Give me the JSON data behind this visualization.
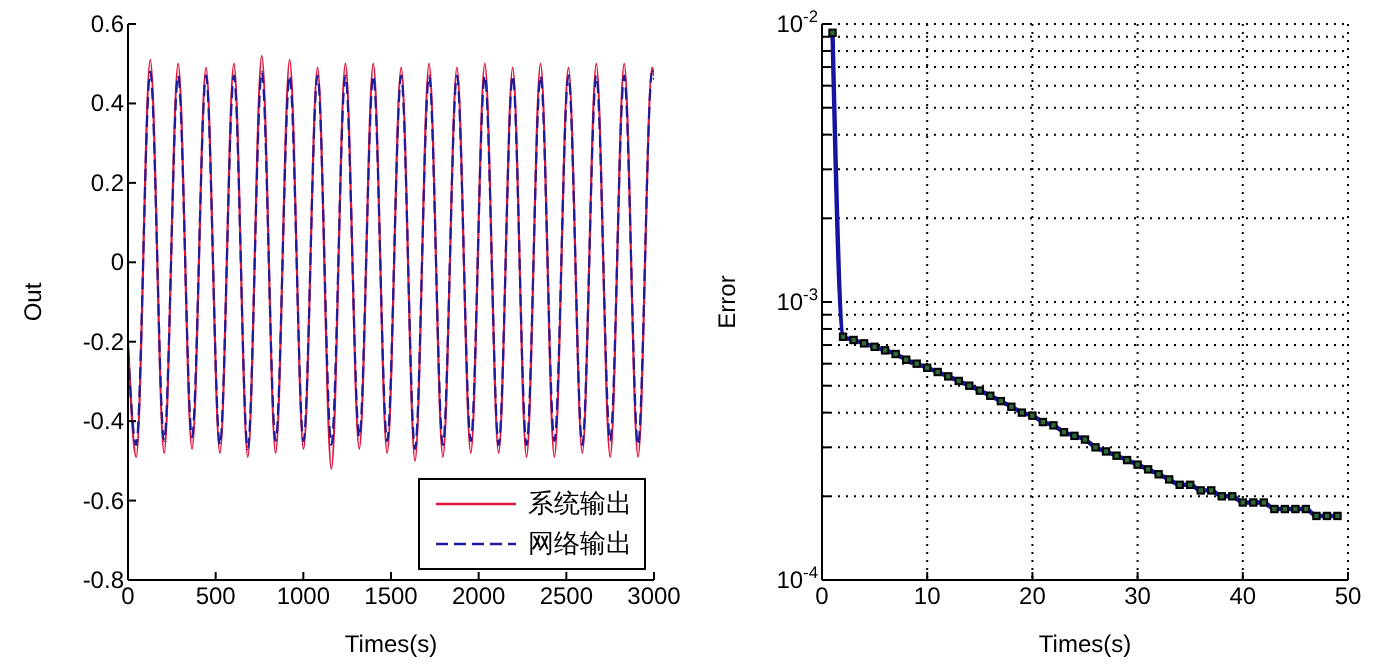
{
  "chart_data": [
    {
      "type": "line",
      "xlabel": "Times(s)",
      "ylabel": "Out",
      "x": [
        0,
        47,
        127,
        206,
        286,
        365,
        445,
        524,
        604,
        683,
        763,
        842,
        922,
        1001,
        1081,
        1160,
        1240,
        1319,
        1399,
        1478,
        1558,
        1637,
        1717,
        1796,
        1876,
        1955,
        2035,
        2114,
        2194,
        2273,
        2353,
        2432,
        2512,
        2591,
        2671,
        2750,
        2830,
        2909,
        2989,
        3000
      ],
      "series": [
        {
          "name": "系统输出",
          "color": "#e0143c",
          "line_style": "solid",
          "values": [
            -0.2,
            -0.49,
            0.51,
            -0.48,
            0.5,
            -0.47,
            0.49,
            -0.48,
            0.5,
            -0.49,
            0.52,
            -0.48,
            0.51,
            -0.47,
            0.49,
            -0.52,
            0.5,
            -0.47,
            0.5,
            -0.48,
            0.49,
            -0.5,
            0.5,
            -0.49,
            0.49,
            -0.48,
            0.5,
            -0.48,
            0.49,
            -0.49,
            0.5,
            -0.49,
            0.49,
            -0.48,
            0.5,
            -0.49,
            0.5,
            -0.49,
            0.49,
            0.47
          ]
        },
        {
          "name": "网络输出",
          "color": "#1c1c9c",
          "line_style": "dashed",
          "values": [
            -0.22,
            -0.46,
            0.48,
            -0.45,
            0.47,
            -0.44,
            0.47,
            -0.46,
            0.47,
            -0.47,
            0.48,
            -0.45,
            0.47,
            -0.45,
            0.47,
            -0.46,
            0.47,
            -0.44,
            0.47,
            -0.45,
            0.47,
            -0.47,
            0.47,
            -0.46,
            0.47,
            -0.45,
            0.47,
            -0.46,
            0.47,
            -0.46,
            0.47,
            -0.45,
            0.47,
            -0.46,
            0.47,
            -0.45,
            0.47,
            -0.46,
            0.48,
            0.46
          ]
        }
      ],
      "xlim": [
        0,
        3000
      ],
      "xticks": [
        0,
        500,
        1000,
        1500,
        2000,
        2500,
        3000
      ],
      "ylim": [
        -0.8,
        0.6
      ],
      "yticks": [
        -0.8,
        -0.6,
        -0.4,
        -0.2,
        0,
        0.2,
        0.4,
        0.6
      ],
      "legend": "bottom right",
      "grid": false
    },
    {
      "type": "line",
      "xlabel": "Times(s)",
      "ylabel": "Error",
      "log": "y",
      "marker": "square",
      "grid": true,
      "x": [
        1,
        2,
        3,
        4,
        5,
        6,
        7,
        8,
        9,
        10,
        11,
        12,
        13,
        14,
        15,
        16,
        17,
        18,
        19,
        20,
        21,
        22,
        23,
        24,
        25,
        26,
        27,
        28,
        29,
        30,
        31,
        32,
        33,
        34,
        35,
        36,
        37,
        38,
        39,
        40,
        41,
        42,
        43,
        44,
        45,
        46,
        47,
        48,
        49
      ],
      "series": [
        {
          "color": "#1414a0",
          "values": [
            0.0093,
            0.00075,
            0.00073,
            0.00071,
            0.00069,
            0.00067,
            0.00065,
            0.00062,
            0.0006,
            0.00058,
            0.00056,
            0.00054,
            0.00052,
            0.0005,
            0.00048,
            0.00046,
            0.00044,
            0.00042,
            0.0004,
            0.00039,
            0.00037,
            0.00036,
            0.00034,
            0.00033,
            0.00032,
            0.0003,
            0.00029,
            0.00028,
            0.00027,
            0.00026,
            0.00025,
            0.00024,
            0.00023,
            0.00022,
            0.00022,
            0.00021,
            0.00021,
            0.0002,
            0.0002,
            0.00019,
            0.00019,
            0.00019,
            0.00018,
            0.00018,
            0.00018,
            0.00018,
            0.00017,
            0.00017,
            0.00017
          ]
        }
      ],
      "xlim": [
        0,
        50
      ],
      "xticks": [
        0,
        10,
        20,
        30,
        40,
        50
      ],
      "ylim": [
        0.0001,
        0.01
      ],
      "yticks": [
        {
          "value": 0.0001,
          "label": "10$^{-4}$"
        },
        {
          "value": 0.0002,
          "label": null
        },
        {
          "value": 0.0003,
          "label": null
        },
        {
          "value": 0.0004,
          "label": null
        },
        {
          "value": 0.0005,
          "label": null
        },
        {
          "value": 0.0006,
          "label": null
        },
        {
          "value": 0.0007,
          "label": null
        },
        {
          "value": 0.0008,
          "label": null
        },
        {
          "value": 0.0009,
          "label": null
        },
        {
          "value": 0.001,
          "label": "10$^{-3}$"
        },
        {
          "value": 0.002,
          "label": null
        },
        {
          "value": 0.003,
          "label": null
        },
        {
          "value": 0.004,
          "label": null
        },
        {
          "value": 0.005,
          "label": null
        },
        {
          "value": 0.006,
          "label": null
        },
        {
          "value": 0.007,
          "label": null
        },
        {
          "value": 0.008,
          "label": null
        },
        {
          "value": 0.009,
          "label": null
        },
        {
          "value": 0.01,
          "label": "10$^{-2}$"
        }
      ]
    }
  ]
}
